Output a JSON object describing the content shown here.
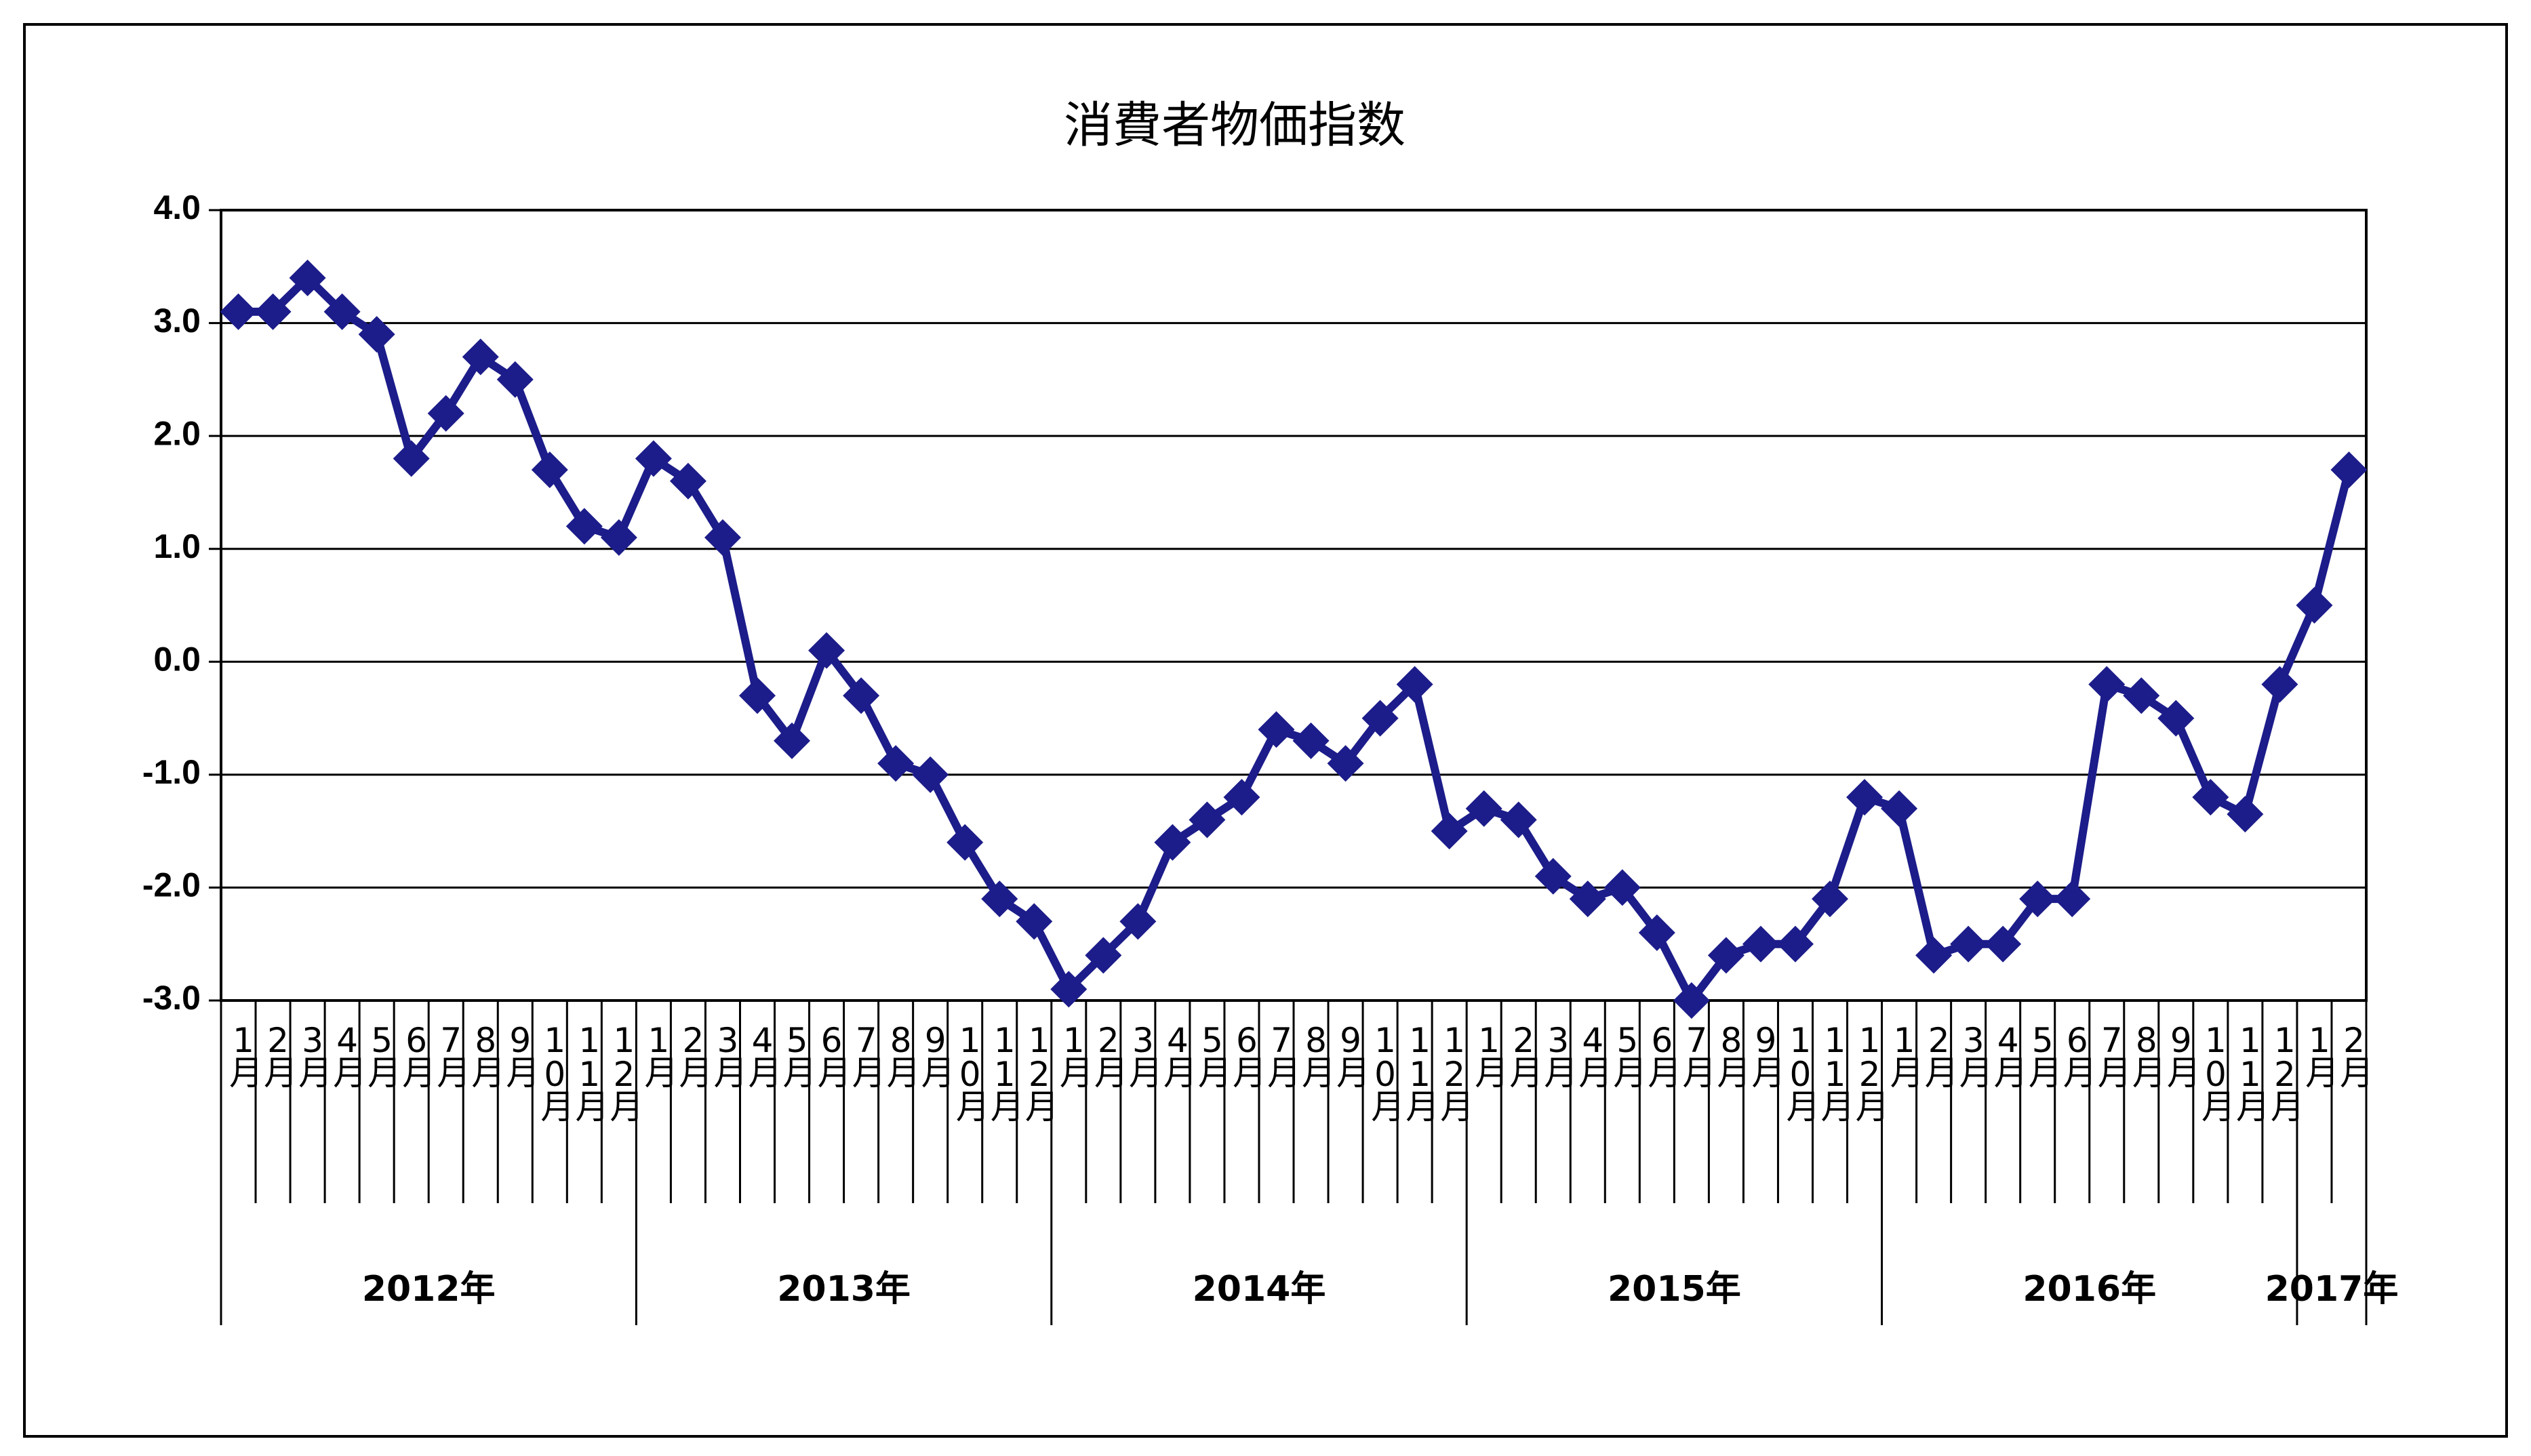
{
  "chart_data": {
    "type": "line",
    "title": "消費者物価指数",
    "groups": [
      {
        "label": "2012年",
        "categories": [
          "1月",
          "2月",
          "3月",
          "4月",
          "5月",
          "6月",
          "7月",
          "8月",
          "9月",
          "10月",
          "11月",
          "12月"
        ]
      },
      {
        "label": "2013年",
        "categories": [
          "1月",
          "2月",
          "3月",
          "4月",
          "5月",
          "6月",
          "7月",
          "8月",
          "9月",
          "10月",
          "11月",
          "12月"
        ]
      },
      {
        "label": "2014年",
        "categories": [
          "1月",
          "2月",
          "3月",
          "4月",
          "5月",
          "6月",
          "7月",
          "8月",
          "9月",
          "10月",
          "11月",
          "12月"
        ]
      },
      {
        "label": "2015年",
        "categories": [
          "1月",
          "2月",
          "3月",
          "4月",
          "5月",
          "6月",
          "7月",
          "8月",
          "9月",
          "10月",
          "11月",
          "12月"
        ]
      },
      {
        "label": "2016年",
        "categories": [
          "1月",
          "2月",
          "3月",
          "4月",
          "5月",
          "6月",
          "7月",
          "8月",
          "9月",
          "10月",
          "11月",
          "12月"
        ]
      },
      {
        "label": "2017年",
        "categories": [
          "1月",
          "2月"
        ]
      }
    ],
    "series": [
      {
        "color": "#1c1c8a",
        "values": [
          3.1,
          3.1,
          3.4,
          3.1,
          2.9,
          1.8,
          2.2,
          2.7,
          2.5,
          1.7,
          1.2,
          1.1,
          1.8,
          1.6,
          1.1,
          -0.3,
          -0.7,
          0.1,
          -0.3,
          -0.9,
          -1.0,
          -1.6,
          -2.1,
          -2.3,
          -2.9,
          -2.6,
          -2.3,
          -1.6,
          -1.4,
          -1.2,
          -0.6,
          -0.7,
          -0.9,
          -0.5,
          -0.2,
          -1.5,
          -1.3,
          -1.4,
          -1.9,
          -2.1,
          -2.0,
          -2.4,
          -3.0,
          -2.6,
          -2.5,
          -2.5,
          -2.1,
          -1.2,
          -1.3,
          -2.6,
          -2.5,
          -2.5,
          -2.1,
          -2.1,
          -0.2,
          -0.3,
          -0.5,
          -1.2,
          -1.35,
          -0.2,
          0.5,
          1.7
        ]
      }
    ],
    "ylim": [
      -3.0,
      4.0
    ],
    "yticks": [
      {
        "value": -3,
        "label": "-3.0"
      },
      {
        "value": -2,
        "label": "-2.0"
      },
      {
        "value": -1,
        "label": "-1.0"
      },
      {
        "value": 0,
        "label": "0.0"
      },
      {
        "value": 1,
        "label": "1.0"
      },
      {
        "value": 2,
        "label": "2.0"
      },
      {
        "value": 3,
        "label": "3.0"
      },
      {
        "value": 4,
        "label": "4.0"
      }
    ],
    "grid": true
  }
}
